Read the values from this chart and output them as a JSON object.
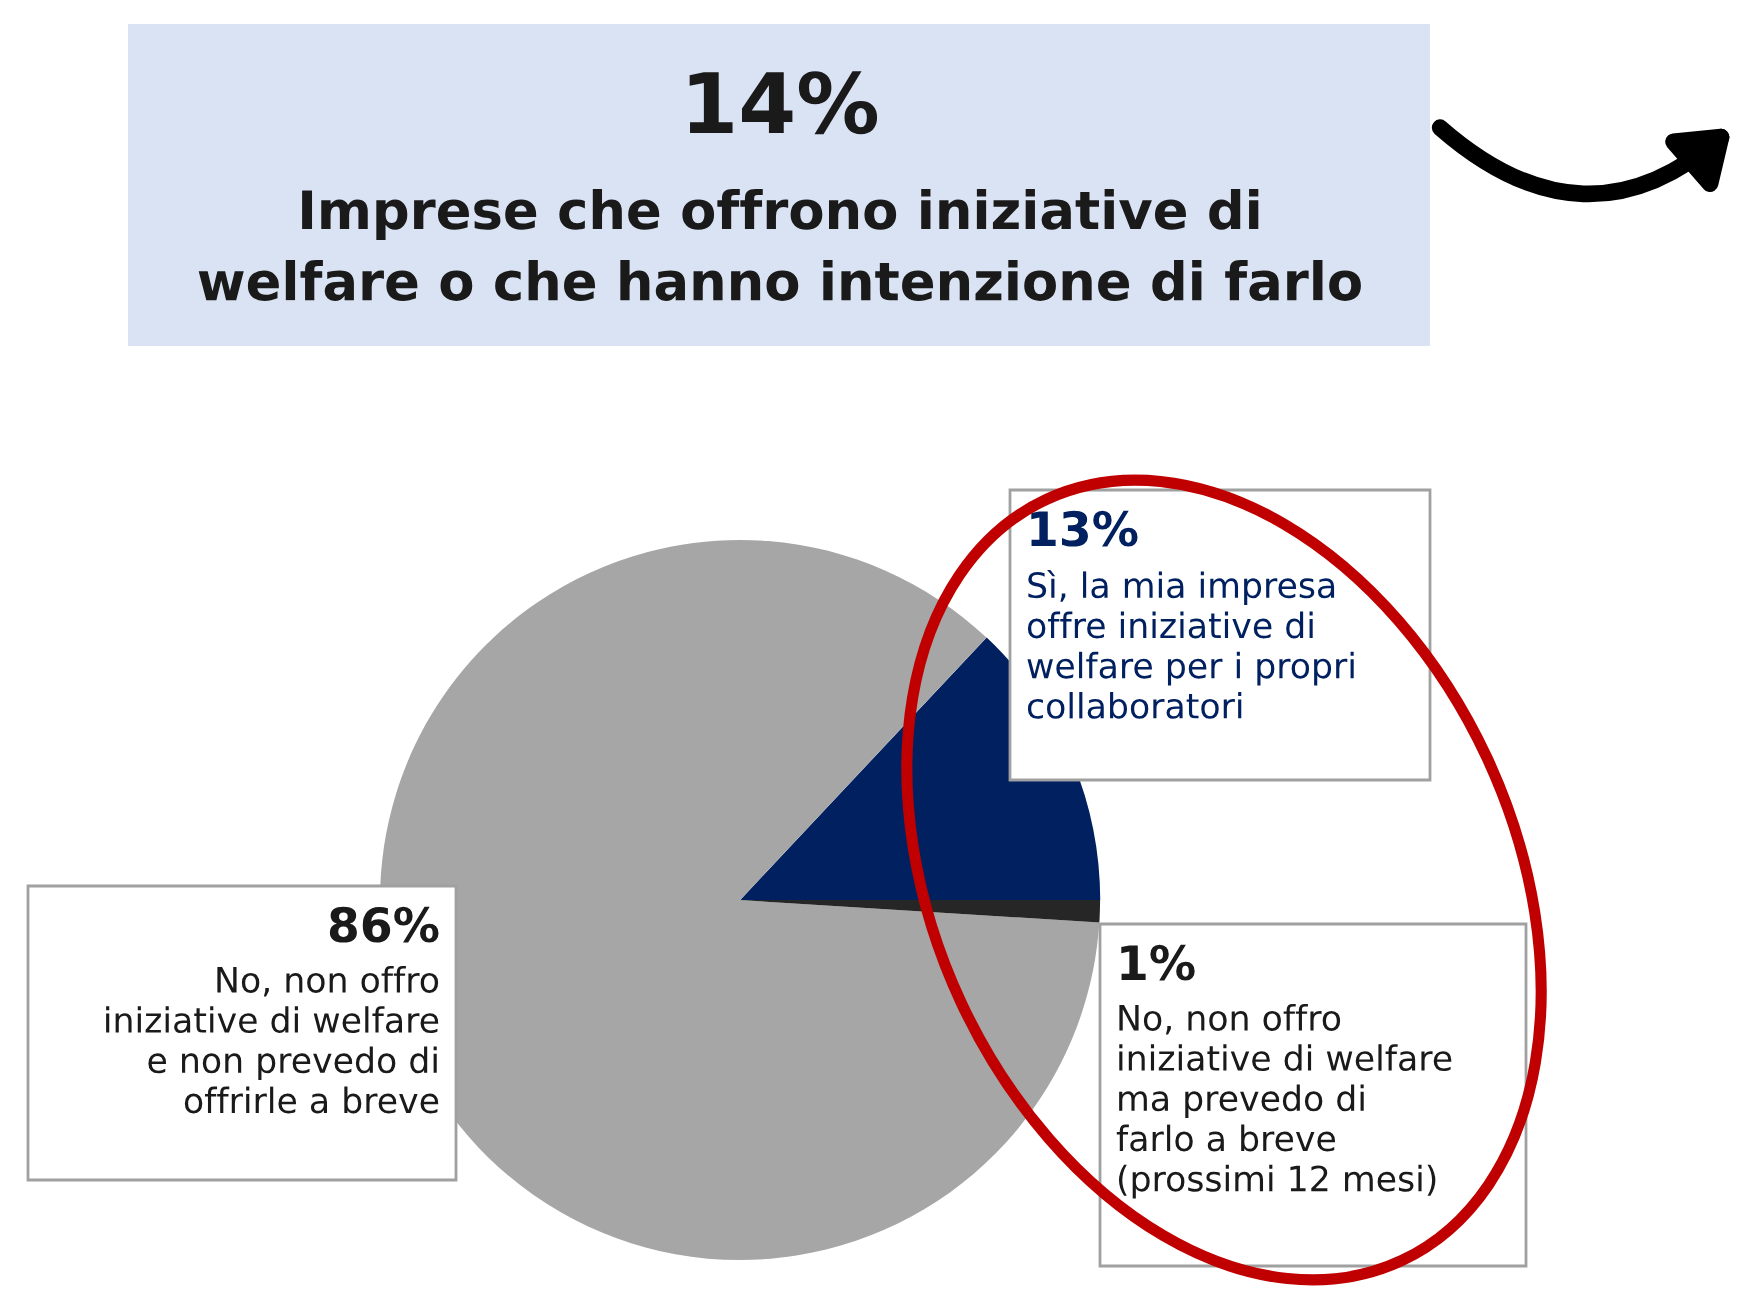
{
  "chart_data": {
    "type": "pie",
    "title": "14%",
    "subtitle": "Imprese che offrono iniziative di\nwelfare o che hanno intenzione di farlo",
    "categories": [
      "Sì, la mia impresa\noffre iniziative di\nwelfare per i propri\ncollaboratori",
      "No, non offro\niniziative di welfare\ne non prevedo di\noffrirle a breve",
      "No, non offro\niniziative di welfare\nma prevedo di\nfarlo a breve\n(prossimi 12 mesi)"
    ],
    "values": [
      13,
      86,
      1
    ],
    "value_labels": [
      "13%",
      "86%",
      "1%"
    ],
    "colors": [
      "#002060",
      "#a6a6a6",
      "#262626"
    ],
    "legend": false
  }
}
